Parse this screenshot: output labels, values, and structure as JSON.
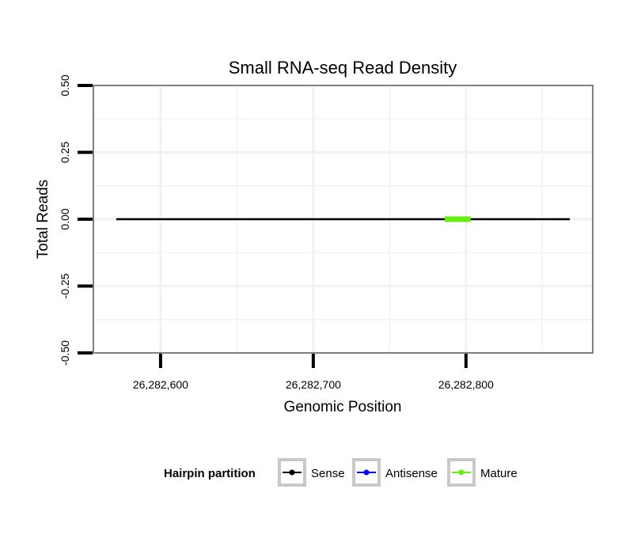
{
  "chart_data": {
    "type": "line",
    "title": "Small RNA-seq Read Density",
    "xlabel": "Genomic Position",
    "ylabel": "Total Reads",
    "xlim": [
      26282556,
      26282883
    ],
    "ylim": [
      -0.5,
      0.5
    ],
    "x_ticks": [
      26282600,
      26282700,
      26282800
    ],
    "x_tick_labels": [
      "26,282,600",
      "26,282,700",
      "26,282,800"
    ],
    "y_ticks": [
      -0.5,
      -0.25,
      0,
      0.25,
      0.5
    ],
    "y_tick_labels": [
      "-0.50",
      "-0.25",
      "0.00",
      "0.25",
      "0.50"
    ],
    "grid": true,
    "series": [
      {
        "name": "Sense",
        "color": "#000000",
        "x": [
          26282571,
          26282868
        ],
        "y": [
          0,
          0
        ]
      },
      {
        "name": "Antisense",
        "color": "#0000ff",
        "x": [
          26282571,
          26282868
        ],
        "y": [
          0,
          0
        ]
      },
      {
        "name": "Mature",
        "color": "#66ee11",
        "x": [
          26282786,
          26282803
        ],
        "y": [
          0,
          0
        ]
      }
    ],
    "legend": {
      "title": "Hairpin partition",
      "placement": "bottom",
      "entries": [
        "Sense",
        "Antisense",
        "Mature"
      ]
    }
  }
}
